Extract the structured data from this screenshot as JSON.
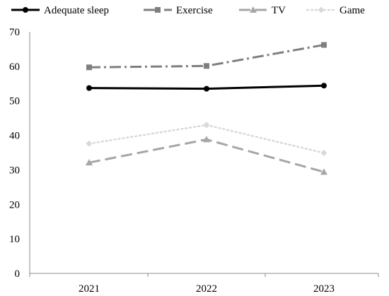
{
  "chart_data": {
    "type": "line",
    "categories": [
      "2021",
      "2022",
      "2023"
    ],
    "ylim": [
      0,
      70
    ],
    "yticks": [
      0,
      10,
      20,
      30,
      40,
      50,
      60,
      70
    ],
    "grid": false,
    "legend_position": "top",
    "series": [
      {
        "name": "Adequate sleep",
        "values": [
          53.7,
          53.5,
          54.4
        ],
        "color": "#000000",
        "dash": "solid",
        "marker": "circle"
      },
      {
        "name": "Exercise",
        "values": [
          59.7,
          60.1,
          66.2
        ],
        "color": "#7f7f7f",
        "dash": "dash-dot",
        "marker": "square"
      },
      {
        "name": "TV",
        "values": [
          32.1,
          38.8,
          29.4
        ],
        "color": "#a6a6a6",
        "dash": "long-dash",
        "marker": "triangle"
      },
      {
        "name": "Game",
        "values": [
          37.6,
          43.0,
          34.9
        ],
        "color": "#d9d9d9",
        "dash": "dot",
        "marker": "diamond"
      }
    ]
  }
}
